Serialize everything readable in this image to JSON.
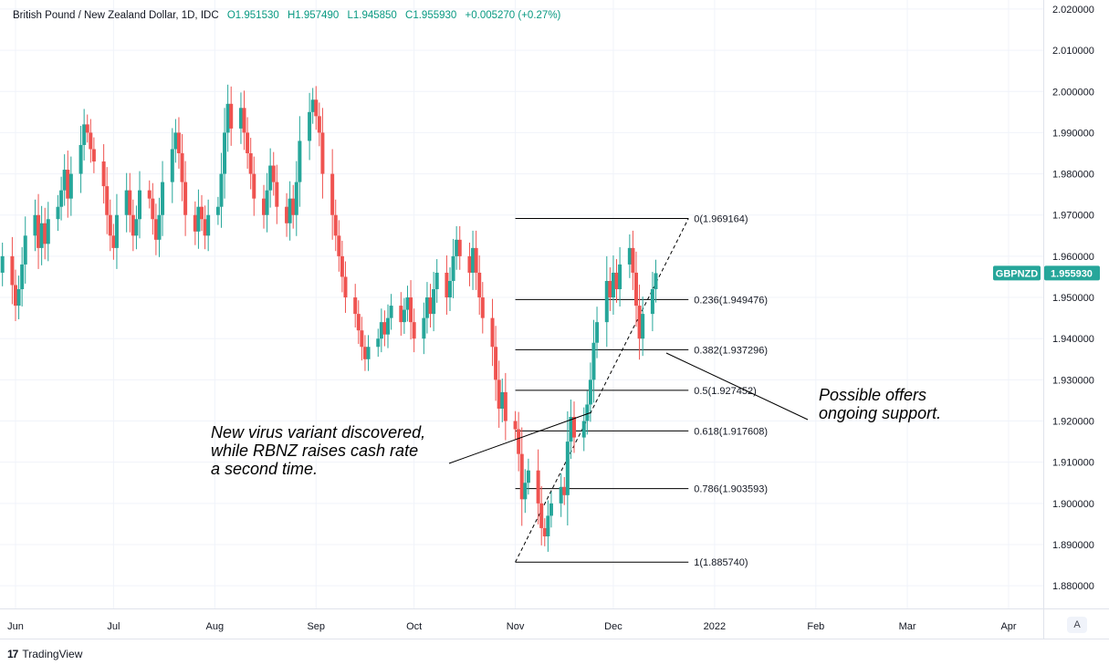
{
  "legend": {
    "symbol": "British Pound / New Zealand Dollar, 1D, IDC",
    "open": "O1.951530",
    "high": "H1.957490",
    "low": "L1.945850",
    "close": "C1.955930",
    "change": "+0.005270 (+0.27%)"
  },
  "price_badge": {
    "ticker": "GBPNZD",
    "price": "1.955930"
  },
  "corner_button": "A",
  "brand": "TradingView",
  "colors": {
    "up": "#26a69a",
    "down": "#ef5350",
    "badge": "#26a69a",
    "grid": "#f0f3fa"
  },
  "annotations": {
    "left_note": [
      "New virus variant discovered,",
      "while RBNZ raises cash rate",
      "a second time."
    ],
    "right_note": [
      "Possible offers",
      "ongoing support."
    ]
  },
  "chart_data": {
    "type": "candlestick",
    "title": "British Pound / New Zealand Dollar, 1D, IDC",
    "y_ticks": [
      1.88,
      1.89,
      1.9,
      1.91,
      1.92,
      1.93,
      1.94,
      1.95,
      1.96,
      1.97,
      1.98,
      1.99,
      2.0,
      2.01,
      2.02
    ],
    "y_tick_labels": [
      "1.880000",
      "1.890000",
      "1.900000",
      "1.910000",
      "1.920000",
      "1.930000",
      "1.940000",
      "1.950000",
      "1.960000",
      "1.970000",
      "1.980000",
      "1.990000",
      "2.000000",
      "2.010000",
      "2.020000"
    ],
    "ylim": [
      1.8745,
      2.0222
    ],
    "x_labels": [
      {
        "label": "Jun",
        "date": "2021-06-01"
      },
      {
        "label": "Jul",
        "date": "2021-07-01"
      },
      {
        "label": "Aug",
        "date": "2021-08-01"
      },
      {
        "label": "Sep",
        "date": "2021-09-01"
      },
      {
        "label": "Oct",
        "date": "2021-10-01"
      },
      {
        "label": "Nov",
        "date": "2021-11-01"
      },
      {
        "label": "Dec",
        "date": "2021-12-01"
      },
      {
        "label": "2022",
        "date": "2022-01-01"
      },
      {
        "label": "Feb",
        "date": "2022-02-01"
      },
      {
        "label": "Mar",
        "date": "2022-03-01"
      },
      {
        "label": "Apr",
        "date": "2022-04-01"
      }
    ],
    "fibonacci": {
      "levels": [
        {
          "label": "0(1.969164)",
          "value": 1.969164
        },
        {
          "label": "0.236(1.949476)",
          "value": 1.949476
        },
        {
          "label": "0.382(1.937296)",
          "value": 1.937296
        },
        {
          "label": "0.5(1.927452)",
          "value": 1.927452
        },
        {
          "label": "0.618(1.917608)",
          "value": 1.917608
        },
        {
          "label": "0.786(1.903593)",
          "value": 1.903593
        },
        {
          "label": "1(1.885740)",
          "value": 1.88574
        }
      ],
      "start_date": "2021-11-01",
      "end_date": "2021-12-24"
    },
    "closes": [
      {
        "date": "2021-05-28",
        "close": 1.96
      },
      {
        "date": "2021-05-31",
        "close": 1.953
      },
      {
        "date": "2021-06-01",
        "close": 1.948
      },
      {
        "date": "2021-06-02",
        "close": 1.952
      },
      {
        "date": "2021-06-03",
        "close": 1.958
      },
      {
        "date": "2021-06-04",
        "close": 1.965
      },
      {
        "date": "2021-06-07",
        "close": 1.97
      },
      {
        "date": "2021-06-08",
        "close": 1.962
      },
      {
        "date": "2021-06-09",
        "close": 1.968
      },
      {
        "date": "2021-06-10",
        "close": 1.963
      },
      {
        "date": "2021-06-11",
        "close": 1.969
      },
      {
        "date": "2021-06-14",
        "close": 1.972
      },
      {
        "date": "2021-06-15",
        "close": 1.976
      },
      {
        "date": "2021-06-16",
        "close": 1.981
      },
      {
        "date": "2021-06-17",
        "close": 1.974
      },
      {
        "date": "2021-06-18",
        "close": 1.98
      },
      {
        "date": "2021-06-21",
        "close": 1.987
      },
      {
        "date": "2021-06-22",
        "close": 1.992
      },
      {
        "date": "2021-06-23",
        "close": 1.99
      },
      {
        "date": "2021-06-24",
        "close": 1.986
      },
      {
        "date": "2021-06-25",
        "close": 1.983
      },
      {
        "date": "2021-06-28",
        "close": 1.977
      },
      {
        "date": "2021-06-29",
        "close": 1.97
      },
      {
        "date": "2021-06-30",
        "close": 1.965
      },
      {
        "date": "2021-07-01",
        "close": 1.962
      },
      {
        "date": "2021-07-02",
        "close": 1.97
      },
      {
        "date": "2021-07-05",
        "close": 1.976
      },
      {
        "date": "2021-07-06",
        "close": 1.97
      },
      {
        "date": "2021-07-07",
        "close": 1.965
      },
      {
        "date": "2021-07-08",
        "close": 1.969
      },
      {
        "date": "2021-07-09",
        "close": 1.976
      },
      {
        "date": "2021-07-12",
        "close": 1.974
      },
      {
        "date": "2021-07-13",
        "close": 1.969
      },
      {
        "date": "2021-07-14",
        "close": 1.964
      },
      {
        "date": "2021-07-15",
        "close": 1.97
      },
      {
        "date": "2021-07-16",
        "close": 1.978
      },
      {
        "date": "2021-07-19",
        "close": 1.986
      },
      {
        "date": "2021-07-20",
        "close": 1.99
      },
      {
        "date": "2021-07-21",
        "close": 1.985
      },
      {
        "date": "2021-07-22",
        "close": 1.978
      },
      {
        "date": "2021-07-23",
        "close": 1.97
      },
      {
        "date": "2021-07-26",
        "close": 1.966
      },
      {
        "date": "2021-07-27",
        "close": 1.972
      },
      {
        "date": "2021-07-28",
        "close": 1.969
      },
      {
        "date": "2021-07-29",
        "close": 1.965
      },
      {
        "date": "2021-07-30",
        "close": 1.97
      },
      {
        "date": "2021-08-02",
        "close": 1.972
      },
      {
        "date": "2021-08-03",
        "close": 1.98
      },
      {
        "date": "2021-08-04",
        "close": 1.99
      },
      {
        "date": "2021-08-05",
        "close": 1.997
      },
      {
        "date": "2021-08-06",
        "close": 1.991
      },
      {
        "date": "2021-08-09",
        "close": 1.996
      },
      {
        "date": "2021-08-10",
        "close": 1.99
      },
      {
        "date": "2021-08-11",
        "close": 1.985
      },
      {
        "date": "2021-08-12",
        "close": 1.98
      },
      {
        "date": "2021-08-13",
        "close": 1.974
      },
      {
        "date": "2021-08-16",
        "close": 1.97
      },
      {
        "date": "2021-08-17",
        "close": 1.976
      },
      {
        "date": "2021-08-18",
        "close": 1.982
      },
      {
        "date": "2021-08-19",
        "close": 1.978
      },
      {
        "date": "2021-08-20",
        "close": 1.972
      },
      {
        "date": "2021-08-23",
        "close": 1.968
      },
      {
        "date": "2021-08-24",
        "close": 1.974
      },
      {
        "date": "2021-08-25",
        "close": 1.97
      },
      {
        "date": "2021-08-26",
        "close": 1.978
      },
      {
        "date": "2021-08-27",
        "close": 1.988
      },
      {
        "date": "2021-08-30",
        "close": 1.995
      },
      {
        "date": "2021-08-31",
        "close": 1.998
      },
      {
        "date": "2021-09-01",
        "close": 1.994
      },
      {
        "date": "2021-09-02",
        "close": 1.99
      },
      {
        "date": "2021-09-03",
        "close": 1.98
      },
      {
        "date": "2021-09-06",
        "close": 1.97
      },
      {
        "date": "2021-09-07",
        "close": 1.965
      },
      {
        "date": "2021-09-08",
        "close": 1.96
      },
      {
        "date": "2021-09-09",
        "close": 1.955
      },
      {
        "date": "2021-09-10",
        "close": 1.95
      },
      {
        "date": "2021-09-13",
        "close": 1.946
      },
      {
        "date": "2021-09-14",
        "close": 1.942
      },
      {
        "date": "2021-09-15",
        "close": 1.938
      },
      {
        "date": "2021-09-16",
        "close": 1.935
      },
      {
        "date": "2021-09-17",
        "close": 1.938
      },
      {
        "date": "2021-09-20",
        "close": 1.94
      },
      {
        "date": "2021-09-21",
        "close": 1.944
      },
      {
        "date": "2021-09-22",
        "close": 1.941
      },
      {
        "date": "2021-09-23",
        "close": 1.945
      },
      {
        "date": "2021-09-24",
        "close": 1.948
      },
      {
        "date": "2021-09-27",
        "close": 1.944
      },
      {
        "date": "2021-09-28",
        "close": 1.947
      },
      {
        "date": "2021-09-29",
        "close": 1.95
      },
      {
        "date": "2021-09-30",
        "close": 1.944
      },
      {
        "date": "2021-10-01",
        "close": 1.94
      },
      {
        "date": "2021-10-04",
        "close": 1.945
      },
      {
        "date": "2021-10-05",
        "close": 1.95
      },
      {
        "date": "2021-10-06",
        "close": 1.946
      },
      {
        "date": "2021-10-07",
        "close": 1.952
      },
      {
        "date": "2021-10-08",
        "close": 1.956
      },
      {
        "date": "2021-10-11",
        "close": 1.95
      },
      {
        "date": "2021-10-12",
        "close": 1.954
      },
      {
        "date": "2021-10-13",
        "close": 1.96
      },
      {
        "date": "2021-10-14",
        "close": 1.964
      },
      {
        "date": "2021-10-15",
        "close": 1.96
      },
      {
        "date": "2021-10-18",
        "close": 1.956
      },
      {
        "date": "2021-10-19",
        "close": 1.962
      },
      {
        "date": "2021-10-20",
        "close": 1.956
      },
      {
        "date": "2021-10-21",
        "close": 1.95
      },
      {
        "date": "2021-10-22",
        "close": 1.945
      },
      {
        "date": "2021-10-25",
        "close": 1.938
      },
      {
        "date": "2021-10-26",
        "close": 1.93
      },
      {
        "date": "2021-10-27",
        "close": 1.923
      },
      {
        "date": "2021-10-28",
        "close": 1.927
      },
      {
        "date": "2021-10-29",
        "close": 1.92
      },
      {
        "date": "2021-11-01",
        "close": 1.918
      },
      {
        "date": "2021-11-02",
        "close": 1.912
      },
      {
        "date": "2021-11-03",
        "close": 1.901
      },
      {
        "date": "2021-11-04",
        "close": 1.905
      },
      {
        "date": "2021-11-05",
        "close": 1.908
      },
      {
        "date": "2021-11-08",
        "close": 1.9
      },
      {
        "date": "2021-11-09",
        "close": 1.894
      },
      {
        "date": "2021-11-10",
        "close": 1.892
      },
      {
        "date": "2021-11-11",
        "close": 1.897
      },
      {
        "date": "2021-11-12",
        "close": 1.9
      },
      {
        "date": "2021-11-15",
        "close": 1.904
      },
      {
        "date": "2021-11-16",
        "close": 1.902
      },
      {
        "date": "2021-11-17",
        "close": 1.915
      },
      {
        "date": "2021-11-18",
        "close": 1.921
      },
      {
        "date": "2021-11-19",
        "close": 1.916
      },
      {
        "date": "2021-11-22",
        "close": 1.92
      },
      {
        "date": "2021-11-23",
        "close": 1.924
      },
      {
        "date": "2021-11-24",
        "close": 1.93
      },
      {
        "date": "2021-11-25",
        "close": 1.939
      },
      {
        "date": "2021-11-26",
        "close": 1.944
      },
      {
        "date": "2021-11-29",
        "close": 1.954
      },
      {
        "date": "2021-11-30",
        "close": 1.95
      },
      {
        "date": "2021-12-01",
        "close": 1.956
      },
      {
        "date": "2021-12-02",
        "close": 1.952
      },
      {
        "date": "2021-12-03",
        "close": 1.958
      },
      {
        "date": "2021-12-06",
        "close": 1.962
      },
      {
        "date": "2021-12-07",
        "close": 1.956
      },
      {
        "date": "2021-12-08",
        "close": 1.948
      },
      {
        "date": "2021-12-09",
        "close": 1.94
      },
      {
        "date": "2021-12-10",
        "close": 1.946
      },
      {
        "date": "2021-12-13",
        "close": 1.952
      },
      {
        "date": "2021-12-14",
        "close": 1.9559
      }
    ]
  }
}
